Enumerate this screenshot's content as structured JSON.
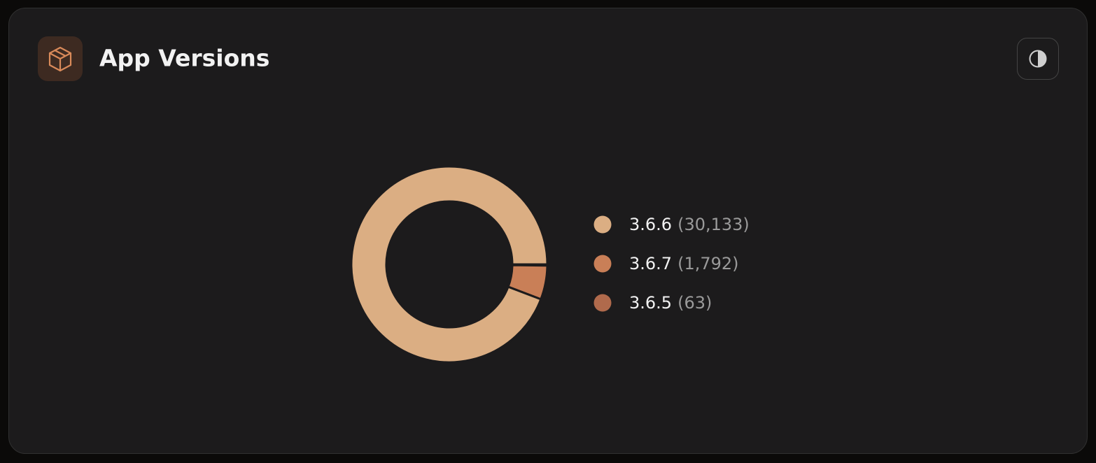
{
  "chart_data": {
    "type": "donut",
    "title": "App Versions",
    "categories": [
      "3.6.6",
      "3.6.7",
      "3.6.5"
    ],
    "values": [
      30133,
      1792,
      63
    ],
    "value_labels": [
      "(30,133)",
      "(1,792)",
      "(63)"
    ],
    "colors": [
      "#dbae83",
      "#c97f57",
      "#b06a4c"
    ]
  }
}
